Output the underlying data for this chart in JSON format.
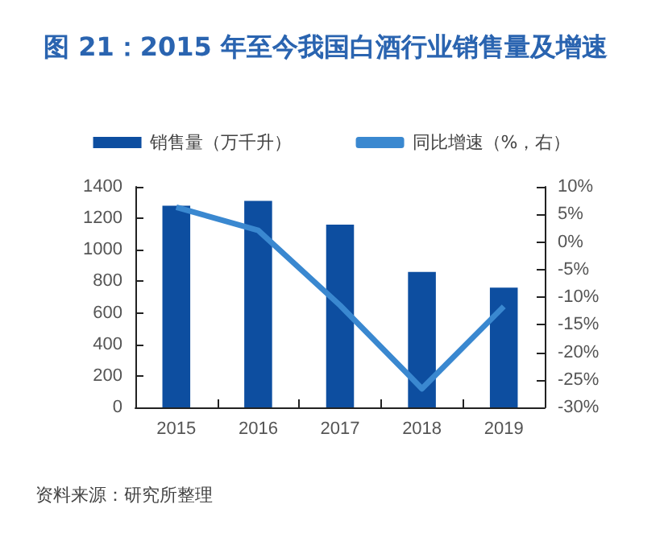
{
  "chart_data": {
    "type": "bar",
    "title": "图 21：2015 年至今我国白酒行业销售量及增速",
    "categories": [
      "2015",
      "2016",
      "2017",
      "2018",
      "2019"
    ],
    "series": [
      {
        "name": "销售量（万千升）",
        "color": "#0d4ea0",
        "values": [
          1280,
          1310,
          1160,
          860,
          760
        ]
      },
      {
        "name": "同比增速（%，右）",
        "type": "line",
        "axis": "y2",
        "color": "#3a88d0",
        "values": [
          6.3,
          2.1,
          -11.5,
          -26.6,
          -11.7
        ]
      }
    ],
    "ylim": [
      0,
      1400
    ],
    "yticks": [
      0,
      200,
      400,
      600,
      800,
      1000,
      1200,
      1400
    ],
    "y2lim": [
      -30,
      10
    ],
    "y2ticks": [
      {
        "value": -30,
        "label": "-30%"
      },
      {
        "value": -25,
        "label": "-25%"
      },
      {
        "value": -20,
        "label": "-20%"
      },
      {
        "value": -15,
        "label": "-15%"
      },
      {
        "value": -10,
        "label": "-10%"
      },
      {
        "value": -5,
        "label": "-5%"
      },
      {
        "value": 0,
        "label": "0%"
      },
      {
        "value": 5,
        "label": "5%"
      },
      {
        "value": 10,
        "label": "10%"
      }
    ],
    "grid": false,
    "legend": "top",
    "marker": "none",
    "annotations": [
      "资料来源：研究所整理"
    ]
  }
}
